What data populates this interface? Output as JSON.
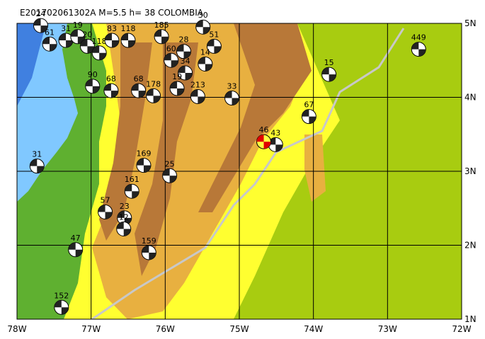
{
  "map": {
    "title": "E201702061302A  M=5.5  h= 38  COLOMBIA",
    "xlim": [
      -78,
      -72
    ],
    "ylim": [
      1,
      5
    ],
    "xticks": [
      {
        "value": -78,
        "label": "78W"
      },
      {
        "value": -77,
        "label": "77W"
      },
      {
        "value": -76,
        "label": "76W"
      },
      {
        "value": -75,
        "label": "75W"
      },
      {
        "value": -74,
        "label": "74W"
      },
      {
        "value": -73,
        "label": "73W"
      },
      {
        "value": -72,
        "label": "72W"
      }
    ],
    "yticks": [
      {
        "value": 1,
        "label": "1N"
      },
      {
        "value": 2,
        "label": "2N"
      },
      {
        "value": 3,
        "label": "3N"
      },
      {
        "value": 4,
        "label": "4N"
      },
      {
        "value": 5,
        "label": "5N"
      }
    ],
    "main_event": {
      "lon": -74.67,
      "lat": 3.4,
      "label": "46"
    },
    "events": [
      {
        "lon": -77.68,
        "lat": 4.97,
        "label": "24"
      },
      {
        "lon": -77.56,
        "lat": 4.72,
        "label": "61"
      },
      {
        "lon": -77.34,
        "lat": 4.77,
        "label": "31"
      },
      {
        "lon": -77.18,
        "lat": 4.82,
        "label": "19"
      },
      {
        "lon": -77.05,
        "lat": 4.69,
        "label": "20"
      },
      {
        "lon": -76.89,
        "lat": 4.6,
        "label": "118"
      },
      {
        "lon": -76.72,
        "lat": 4.77,
        "label": "83"
      },
      {
        "lon": -76.5,
        "lat": 4.77,
        "label": "118"
      },
      {
        "lon": -76.05,
        "lat": 4.82,
        "label": "185"
      },
      {
        "lon": -75.49,
        "lat": 4.95,
        "label": "30"
      },
      {
        "lon": -75.34,
        "lat": 4.69,
        "label": "51"
      },
      {
        "lon": -75.75,
        "lat": 4.62,
        "label": "28"
      },
      {
        "lon": -75.92,
        "lat": 4.5,
        "label": "60"
      },
      {
        "lon": -75.46,
        "lat": 4.45,
        "label": "14"
      },
      {
        "lon": -75.73,
        "lat": 4.33,
        "label": "34"
      },
      {
        "lon": -76.98,
        "lat": 4.15,
        "label": "90"
      },
      {
        "lon": -76.73,
        "lat": 4.09,
        "label": "68"
      },
      {
        "lon": -76.36,
        "lat": 4.09,
        "label": "68"
      },
      {
        "lon": -76.16,
        "lat": 4.02,
        "label": "178"
      },
      {
        "lon": -75.84,
        "lat": 4.12,
        "label": "19"
      },
      {
        "lon": -75.56,
        "lat": 4.01,
        "label": "213"
      },
      {
        "lon": -75.1,
        "lat": 3.99,
        "label": "33"
      },
      {
        "lon": -73.79,
        "lat": 4.31,
        "label": "15"
      },
      {
        "lon": -72.58,
        "lat": 4.65,
        "label": "449"
      },
      {
        "lon": -74.06,
        "lat": 3.74,
        "label": "67"
      },
      {
        "lon": -74.51,
        "lat": 3.36,
        "label": "43"
      },
      {
        "lon": -77.73,
        "lat": 3.07,
        "label": "31"
      },
      {
        "lon": -76.29,
        "lat": 3.08,
        "label": "169"
      },
      {
        "lon": -75.94,
        "lat": 2.94,
        "label": "25"
      },
      {
        "lon": -76.45,
        "lat": 2.73,
        "label": "161"
      },
      {
        "lon": -76.81,
        "lat": 2.45,
        "label": "57"
      },
      {
        "lon": -76.55,
        "lat": 2.37,
        "label": "23"
      },
      {
        "lon": -76.56,
        "lat": 2.22,
        "label": "12"
      },
      {
        "lon": -76.22,
        "lat": 1.9,
        "label": "159"
      },
      {
        "lon": -77.21,
        "lat": 1.94,
        "label": "47"
      },
      {
        "lon": -77.4,
        "lat": 1.16,
        "label": "152"
      }
    ]
  }
}
